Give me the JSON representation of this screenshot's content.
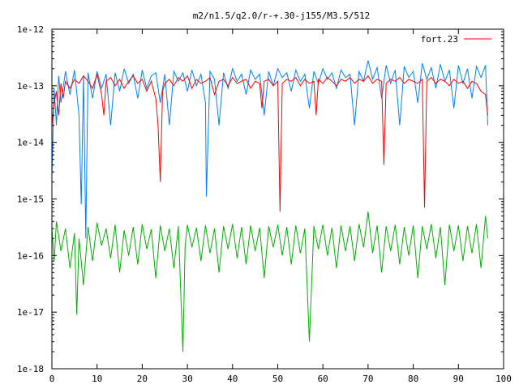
{
  "chart_data": {
    "type": "line",
    "title": "m2/n1.5/q2.0/r-+.30-j155/M3.5/512",
    "xlabel": "",
    "ylabel": "",
    "xlim": [
      0,
      100
    ],
    "ylim": [
      1e-18,
      1e-12
    ],
    "yscale": "log",
    "grid": false,
    "legend_position": "top-right",
    "x_ticks": [
      0,
      10,
      20,
      30,
      40,
      50,
      60,
      70,
      80,
      90,
      100
    ],
    "x_tick_labels": [
      "0",
      "10",
      "20",
      "30",
      "40",
      "50",
      "60",
      "70",
      "80",
      "90",
      "100"
    ],
    "y_ticks": [
      1e-18,
      1e-17,
      1e-16,
      1e-15,
      1e-14,
      1e-13,
      1e-12
    ],
    "y_tick_labels": [
      "1e-18",
      "1e-17",
      "1e-16",
      "1e-15",
      "1e-14",
      "1e-13",
      "1e-12"
    ],
    "series": [
      {
        "name": "fort.23",
        "color": "#ff0000",
        "in_legend": true,
        "x": [
          0,
          0.5,
          1,
          1.5,
          2,
          2.5,
          3,
          4,
          5,
          6,
          7,
          8,
          9,
          10,
          11,
          11.5,
          12,
          13,
          14,
          15,
          16,
          17,
          18,
          19,
          20,
          21,
          22,
          23,
          23.5,
          24,
          24.5,
          25,
          26,
          27,
          28,
          29,
          30,
          31,
          32,
          33,
          34,
          35,
          36,
          37,
          38,
          39,
          40,
          41,
          42,
          43,
          44,
          45,
          46,
          46.5,
          47,
          48,
          49,
          50,
          50.5,
          51,
          52,
          53,
          54,
          55,
          56,
          57,
          58,
          58.5,
          59,
          60,
          61,
          62,
          63,
          64,
          65,
          66,
          67,
          68,
          69,
          70,
          71,
          72,
          73,
          73.5,
          74,
          75,
          76,
          77,
          78,
          79,
          80,
          81,
          82,
          82.5,
          83,
          84,
          85,
          86,
          87,
          88,
          89,
          90,
          91,
          92,
          93,
          94,
          95,
          96,
          96.5
        ],
        "y": [
          2e-14,
          5e-14,
          8e-14,
          3e-14,
          1.1e-13,
          6e-14,
          1.2e-13,
          9e-14,
          1.3e-13,
          1.1e-13,
          1.5e-13,
          1.2e-13,
          9e-14,
          1.6e-13,
          7e-14,
          3e-14,
          1.2e-13,
          1.4e-13,
          1e-13,
          1.3e-13,
          9e-14,
          1.2e-13,
          1.5e-13,
          1.1e-13,
          1.3e-13,
          8e-14,
          1.2e-13,
          6e-14,
          2e-14,
          2e-15,
          8e-14,
          1.1e-13,
          1.3e-13,
          1e-13,
          1.4e-13,
          1.2e-13,
          1.5e-13,
          9e-14,
          1.3e-13,
          1.1e-13,
          1.2e-13,
          1.4e-13,
          7e-14,
          1.2e-13,
          1.3e-13,
          1e-13,
          1.4e-13,
          1.1e-13,
          1.2e-13,
          1.3e-13,
          9e-14,
          1.2e-13,
          1.1e-13,
          4e-14,
          1.2e-13,
          1.3e-13,
          1e-13,
          1.2e-13,
          6e-16,
          1.1e-13,
          1.3e-13,
          1.2e-13,
          1.4e-13,
          1e-13,
          1.3e-13,
          1.1e-13,
          1.2e-13,
          3e-14,
          1.3e-13,
          1.1e-13,
          1.4e-13,
          1.2e-13,
          1e-13,
          1.3e-13,
          1.2e-13,
          1.4e-13,
          1.1e-13,
          1.3e-13,
          1.2e-13,
          1.5e-13,
          1.1e-13,
          1.3e-13,
          1.2e-13,
          4e-15,
          1.1e-13,
          1.3e-13,
          1.2e-13,
          1.4e-13,
          1.1e-13,
          1.3e-13,
          1.2e-13,
          1.1e-13,
          1.3e-13,
          7e-16,
          1.2e-13,
          1.4e-13,
          1.1e-13,
          1.3e-13,
          1.2e-13,
          1e-13,
          1.3e-13,
          1.1e-13,
          1.2e-13,
          9e-14,
          1.2e-13,
          1.1e-13,
          8e-14,
          7e-14,
          3e-14
        ]
      },
      {
        "name": "",
        "color": "#0080ff",
        "in_legend": false,
        "x": [
          0,
          0.5,
          1,
          1.5,
          2,
          3,
          4,
          5,
          6,
          6.5,
          7,
          7.5,
          8,
          9,
          10,
          11,
          12,
          13,
          14,
          15,
          16,
          17,
          18,
          19,
          20,
          21,
          22,
          23,
          24,
          25,
          26,
          27,
          28,
          29,
          30,
          31,
          32,
          33,
          34,
          34.2,
          35,
          36,
          37,
          38,
          39,
          40,
          41,
          42,
          43,
          44,
          45,
          46,
          47,
          48,
          49,
          50,
          51,
          52,
          53,
          54,
          55,
          56,
          57,
          58,
          59,
          60,
          61,
          62,
          63,
          64,
          65,
          66,
          67,
          68,
          69,
          70,
          71,
          72,
          73,
          74,
          75,
          76,
          77,
          78,
          79,
          80,
          81,
          82,
          83,
          84,
          85,
          86,
          87,
          88,
          89,
          90,
          91,
          92,
          93,
          94,
          95,
          96,
          96.5
        ],
        "y": [
          2.5e-15,
          9e-14,
          2e-14,
          1.5e-13,
          5e-14,
          1.8e-13,
          7e-14,
          1.9e-13,
          3e-14,
          8e-16,
          1.5e-13,
          2e-16,
          1.7e-13,
          6e-14,
          1.8e-13,
          9e-14,
          1.6e-13,
          2e-14,
          1.7e-13,
          8e-14,
          2e-13,
          1.1e-13,
          1.6e-13,
          6e-14,
          1.9e-13,
          9e-14,
          1.5e-13,
          1.7e-13,
          5e-14,
          1.6e-13,
          2e-14,
          1.8e-13,
          1.2e-13,
          1.7e-13,
          8e-14,
          1.9e-13,
          1e-13,
          1.6e-13,
          5e-14,
          1.1e-15,
          1.8e-13,
          1.3e-13,
          2e-14,
          1.7e-13,
          9e-14,
          2e-13,
          1.2e-13,
          1.6e-13,
          7e-14,
          1.9e-13,
          1.3e-13,
          1.6e-13,
          3e-14,
          1.8e-13,
          1e-13,
          2e-13,
          1.4e-13,
          1.7e-13,
          8e-14,
          1.9e-13,
          1.2e-13,
          1.6e-13,
          4e-14,
          1.8e-13,
          1.1e-13,
          2e-13,
          1.3e-13,
          1.7e-13,
          9e-14,
          1.9e-13,
          1.4e-13,
          1.6e-13,
          2e-14,
          1.8e-13,
          1.2e-13,
          2.8e-13,
          1.3e-13,
          2.1e-13,
          6e-14,
          2.3e-13,
          1.1e-13,
          1.9e-13,
          2e-14,
          2.2e-13,
          1.4e-13,
          1.8e-13,
          5e-14,
          2.5e-13,
          1.3e-13,
          2.1e-13,
          9e-14,
          2.4e-13,
          1.2e-13,
          1.9e-13,
          4e-14,
          2.3e-13,
          1.1e-13,
          2e-13,
          6e-14,
          2.2e-13,
          1.4e-13,
          2.3e-13,
          2e-14
        ]
      },
      {
        "name": "",
        "color": "#00b000",
        "in_legend": false,
        "x": [
          0,
          0.5,
          1,
          2,
          3,
          4,
          5,
          5.5,
          6,
          7,
          8,
          9,
          10,
          11,
          12,
          13,
          14,
          15,
          16,
          17,
          18,
          19,
          20,
          21,
          22,
          23,
          24,
          25,
          26,
          27,
          28,
          29,
          29.5,
          30,
          31,
          32,
          33,
          34,
          35,
          36,
          37,
          38,
          39,
          40,
          41,
          42,
          43,
          44,
          45,
          46,
          47,
          48,
          49,
          50,
          51,
          52,
          53,
          54,
          55,
          56,
          57,
          58,
          59,
          60,
          61,
          62,
          63,
          64,
          65,
          66,
          67,
          68,
          69,
          70,
          71,
          72,
          73,
          74,
          75,
          76,
          77,
          78,
          79,
          80,
          81,
          82,
          83,
          84,
          85,
          86,
          87,
          88,
          89,
          90,
          91,
          92,
          93,
          94,
          95,
          96,
          96.5
        ],
        "y": [
          3e-16,
          8e-17,
          4e-16,
          1.2e-16,
          3e-16,
          6e-17,
          2.5e-16,
          9e-18,
          2e-16,
          3e-17,
          3.2e-16,
          8e-17,
          3.8e-16,
          1.5e-16,
          3e-16,
          9e-17,
          3.5e-16,
          5e-17,
          2.8e-16,
          1e-16,
          3.2e-16,
          7e-17,
          3.6e-16,
          1.3e-16,
          2.9e-16,
          4e-17,
          3.4e-16,
          1.2e-16,
          3e-16,
          6e-17,
          3.3e-16,
          2e-18,
          1.5e-16,
          3.5e-16,
          1.4e-16,
          3.1e-16,
          8e-17,
          3.4e-16,
          1.1e-16,
          3e-16,
          5e-17,
          3.3e-16,
          1.3e-16,
          3.6e-16,
          9e-17,
          3.2e-16,
          7e-17,
          3.4e-16,
          1.2e-16,
          3.1e-16,
          4e-17,
          3.3e-16,
          1.4e-16,
          3.5e-16,
          1e-16,
          3.2e-16,
          7e-17,
          3.4e-16,
          1.1e-16,
          3e-16,
          3e-18,
          3.3e-16,
          1.3e-16,
          3.5e-16,
          1e-16,
          3.1e-16,
          6e-17,
          3.4e-16,
          1.2e-16,
          3.3e-16,
          8e-17,
          3.6e-16,
          1.4e-16,
          6e-16,
          1.1e-16,
          3.4e-16,
          5e-17,
          3.3e-16,
          1.2e-16,
          3.5e-16,
          7e-17,
          3.2e-16,
          1e-16,
          3.4e-16,
          4e-17,
          3.3e-16,
          1.3e-16,
          3.6e-16,
          9e-17,
          3.2e-16,
          3e-17,
          3.5e-16,
          1.2e-16,
          3.4e-16,
          8e-17,
          3.3e-16,
          1.1e-16,
          3.6e-16,
          6e-17,
          5e-16,
          2e-16
        ]
      }
    ]
  }
}
